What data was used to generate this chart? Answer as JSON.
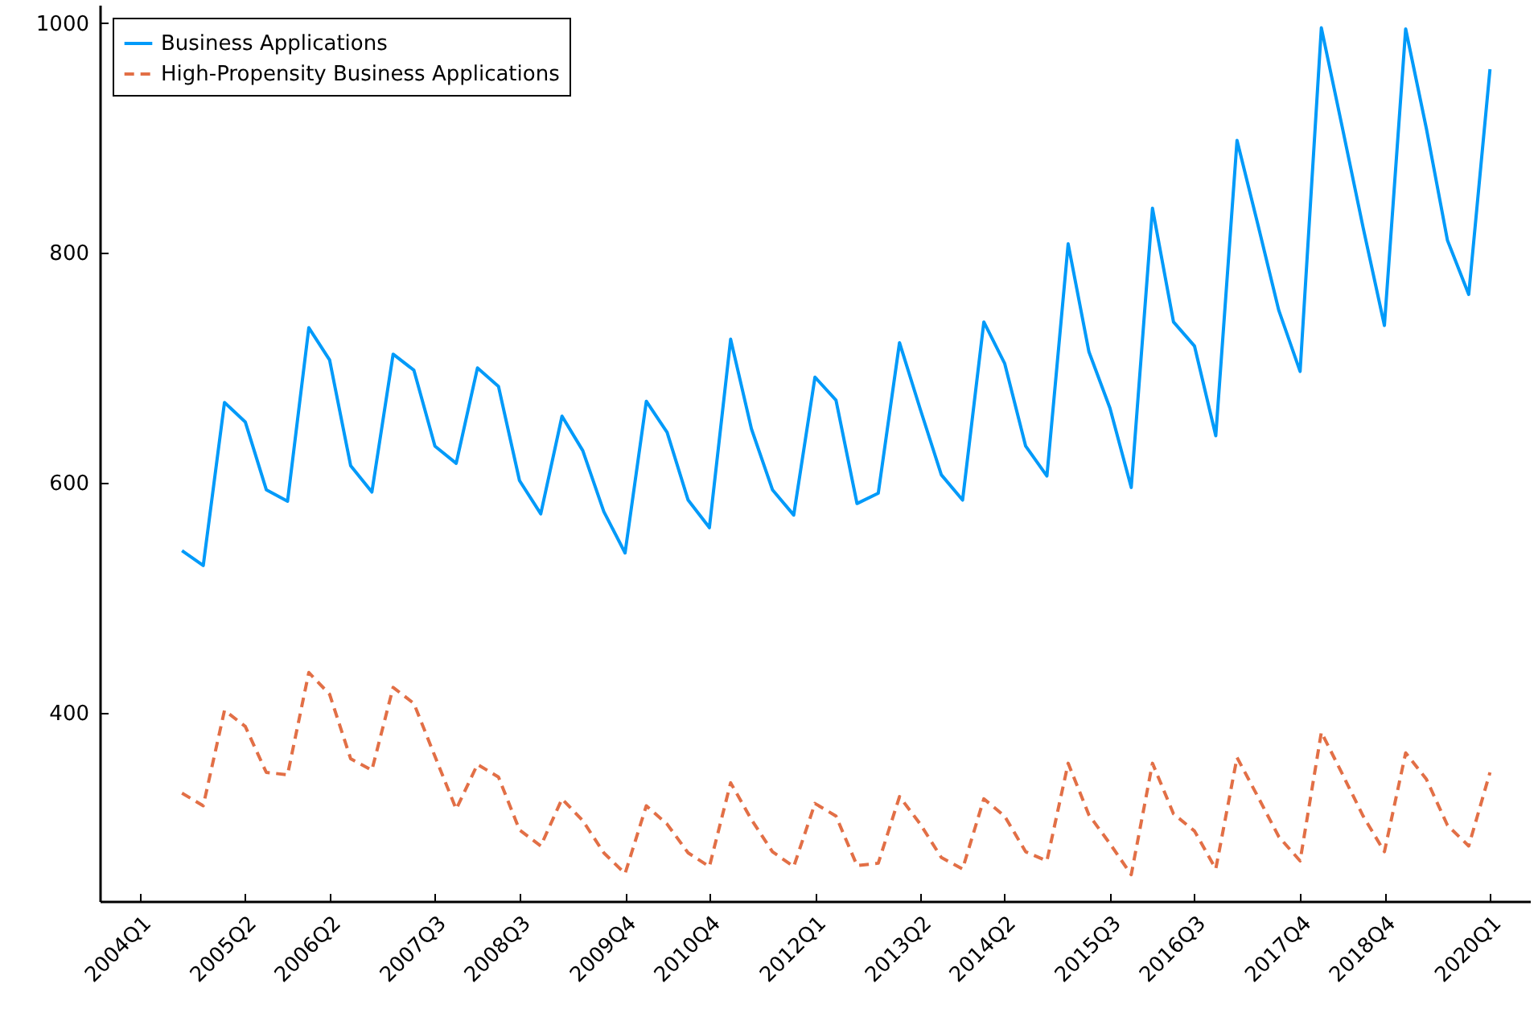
{
  "chart_data": {
    "type": "line",
    "x": [
      "2004-07",
      "2004-10",
      "2005-01",
      "2005-04",
      "2005-07",
      "2005-10",
      "2006-01",
      "2006-04",
      "2006-07",
      "2006-10",
      "2007-01",
      "2007-04",
      "2007-07",
      "2007-10",
      "2008-01",
      "2008-04",
      "2008-07",
      "2008-10",
      "2009-01",
      "2009-04",
      "2009-07",
      "2009-10",
      "2010-01",
      "2010-04",
      "2010-07",
      "2010-10",
      "2011-01",
      "2011-04",
      "2011-07",
      "2011-10",
      "2012-01",
      "2012-04",
      "2012-07",
      "2012-10",
      "2013-01",
      "2013-04",
      "2013-07",
      "2013-10",
      "2014-01",
      "2014-04",
      "2014-07",
      "2014-10",
      "2015-01",
      "2015-04",
      "2015-07",
      "2015-10",
      "2016-01",
      "2016-04",
      "2016-07",
      "2016-10",
      "2017-01",
      "2017-04",
      "2017-07",
      "2017-10",
      "2018-01",
      "2018-04",
      "2018-07",
      "2018-10",
      "2019-01",
      "2019-04",
      "2019-07",
      "2019-10",
      "2020-01"
    ],
    "series": [
      {
        "name": "Business Applications",
        "color": "#009af9",
        "line_style": "solid",
        "values": [
          541,
          528,
          670,
          653,
          594,
          584,
          735,
          707,
          615,
          592,
          712,
          698,
          632,
          617,
          700,
          684,
          602,
          573,
          658,
          628,
          575,
          539,
          671,
          644,
          585,
          561,
          725,
          647,
          594,
          572,
          692,
          672,
          582,
          591,
          722,
          664,
          607,
          585,
          740,
          704,
          632,
          606,
          808,
          714,
          665,
          596,
          839,
          740,
          719,
          641,
          898,
          825,
          750,
          697,
          996,
          910,
          822,
          737,
          995,
          908,
          811,
          764,
          960
        ]
      },
      {
        "name": "High-Propensity Business Applications",
        "color": "#e26f46",
        "line_style": "dashed",
        "values": [
          330,
          319,
          402,
          388,
          348,
          346,
          435,
          416,
          360,
          350,
          422,
          408,
          362,
          316,
          355,
          344,
          298,
          284,
          325,
          306,
          278,
          260,
          319,
          303,
          278,
          266,
          339,
          307,
          279,
          266,
          321,
          310,
          267,
          269,
          327,
          303,
          274,
          264,
          325,
          310,
          279,
          271,
          356,
          311,
          286,
          259,
          356,
          312,
          297,
          264,
          361,
          327,
          292,
          271,
          383,
          347,
          310,
          279,
          365,
          342,
          302,
          284,
          348
        ]
      }
    ],
    "xlim": [
      "2003-07-11",
      "2020-06-22"
    ],
    "xticks": [
      {
        "value": "2004-01",
        "label": "2004Q1"
      },
      {
        "value": "2005-04",
        "label": "2005Q2"
      },
      {
        "value": "2006-04",
        "label": "2006Q2"
      },
      {
        "value": "2007-07",
        "label": "2007Q3"
      },
      {
        "value": "2008-07",
        "label": "2008Q3"
      },
      {
        "value": "2009-10",
        "label": "2009Q4"
      },
      {
        "value": "2010-10",
        "label": "2010Q4"
      },
      {
        "value": "2012-01",
        "label": "2012Q1"
      },
      {
        "value": "2013-04",
        "label": "2013Q2"
      },
      {
        "value": "2014-04",
        "label": "2014Q2"
      },
      {
        "value": "2015-07",
        "label": "2015Q3"
      },
      {
        "value": "2016-07",
        "label": "2016Q3"
      },
      {
        "value": "2017-10",
        "label": "2017Q4"
      },
      {
        "value": "2018-10",
        "label": "2018Q4"
      },
      {
        "value": "2020-01",
        "label": "2020Q1"
      }
    ],
    "ylim": [
      236,
      1016
    ],
    "yticks": [
      400,
      600,
      800,
      1000
    ],
    "grid": false,
    "legend": "top left"
  }
}
